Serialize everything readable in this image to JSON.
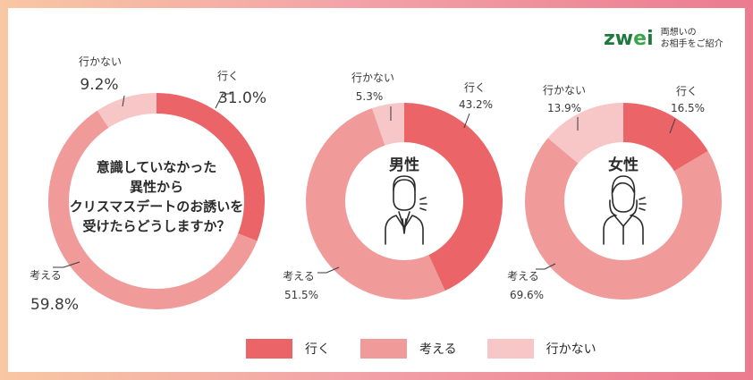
{
  "logo": {
    "word_prefix": "zw",
    "word_mid": "e",
    "word_suffix": "i",
    "tagline_1": "両想いの",
    "tagline_2": "お相手をご紹介"
  },
  "colors": {
    "go": "#eb6467",
    "think": "#f09a9a",
    "not_go": "#f7c6c6"
  },
  "legend": [
    {
      "label": "行く",
      "color": "#eb6467"
    },
    {
      "label": "考える",
      "color": "#f09a9a"
    },
    {
      "label": "行かない",
      "color": "#f7c6c6"
    }
  ],
  "chart_data": [
    {
      "type": "pie",
      "title": "",
      "center_text": [
        "意識していなかった",
        "異性から",
        "クリスマスデートのお誘いを",
        "受けたらどうしますか？"
      ],
      "slices": [
        {
          "label": "行く",
          "value": 31.0,
          "display": "31.0%"
        },
        {
          "label": "考える",
          "value": 59.8,
          "display": "59.8%"
        },
        {
          "label": "行かない",
          "value": 9.2,
          "display": "9.2%"
        }
      ]
    },
    {
      "type": "pie",
      "title": "男性",
      "icon": "man-icon",
      "slices": [
        {
          "label": "行く",
          "value": 43.2,
          "display": "43.2%"
        },
        {
          "label": "考える",
          "value": 51.5,
          "display": "51.5%"
        },
        {
          "label": "行かない",
          "value": 5.3,
          "display": "5.3%"
        }
      ]
    },
    {
      "type": "pie",
      "title": "女性",
      "icon": "woman-icon",
      "slices": [
        {
          "label": "行く",
          "value": 16.5,
          "display": "16.5%"
        },
        {
          "label": "考える",
          "value": 69.6,
          "display": "69.6%"
        },
        {
          "label": "行かない",
          "value": 13.9,
          "display": "13.9%"
        }
      ]
    }
  ]
}
